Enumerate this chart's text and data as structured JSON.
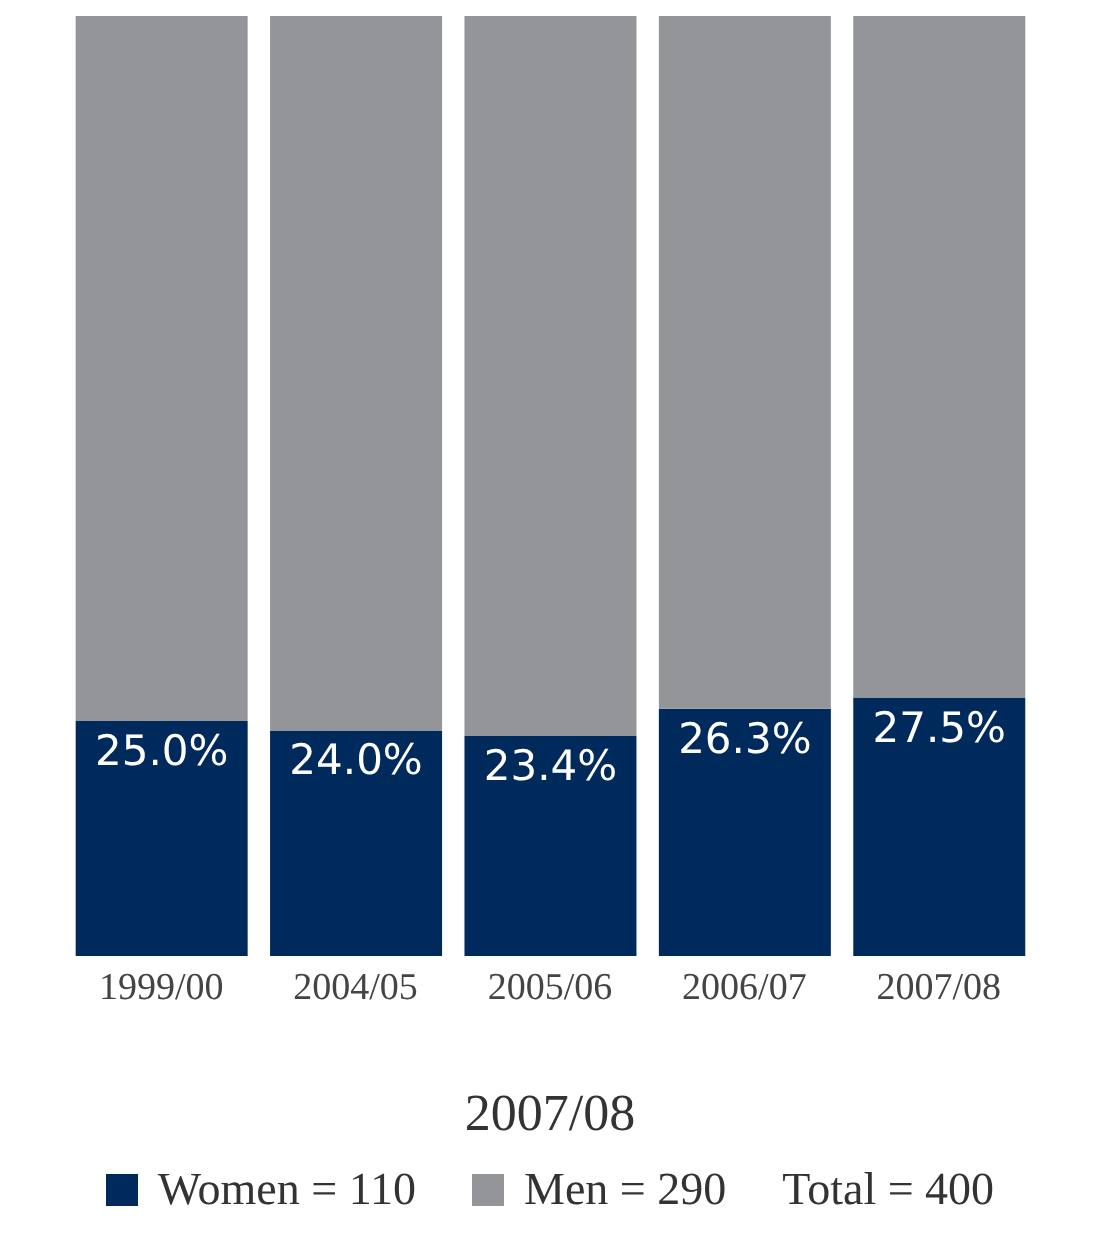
{
  "chart_data": {
    "type": "bar",
    "stacked": true,
    "categories": [
      "1999/00",
      "2004/05",
      "2005/06",
      "2006/07",
      "2007/08"
    ],
    "series": [
      {
        "name": "Women = 110",
        "color": "#002a5c",
        "values": [
          25.0,
          24.0,
          23.4,
          26.3,
          27.5
        ],
        "value_labels": [
          "25.0%",
          "24.0%",
          "23.4%",
          "26.3%",
          "27.5%"
        ]
      },
      {
        "name": "Men = 290",
        "color": "#939598",
        "values": [
          75.0,
          76.0,
          76.6,
          73.7,
          72.5
        ]
      }
    ],
    "legend": "bottom",
    "legend_title": "2007/08",
    "annotations": [
      "Total = 400"
    ]
  }
}
